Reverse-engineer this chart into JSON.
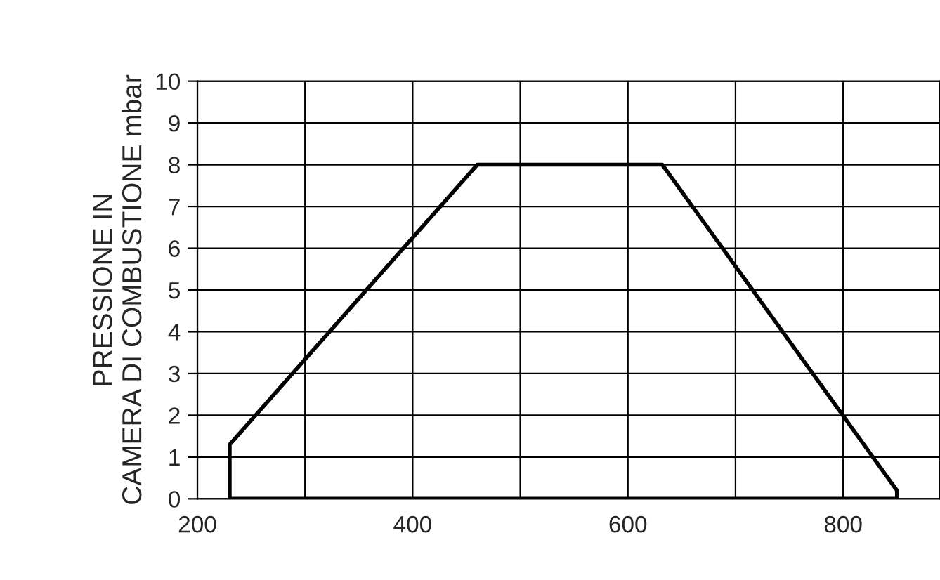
{
  "chart_data": {
    "type": "line",
    "ylabel": "PRESSIONE IN\nCAMERA DI COMBUSTIONE mbar",
    "x": [
      230,
      230,
      460,
      632,
      850,
      850
    ],
    "series": [
      {
        "color": "#000000",
        "values": [
          0,
          1.3,
          8,
          8,
          0.2,
          0
        ]
      },
      {
        "color": "#000000",
        "x": [
          230,
          850
        ],
        "values": [
          0,
          0
        ]
      }
    ],
    "xlim": [
      200,
      890
    ],
    "ylim": [
      0,
      10
    ],
    "xticks": [
      200,
      {
        "value": 300,
        "label": null
      },
      400,
      {
        "value": 500,
        "label": null
      },
      600,
      {
        "value": 700,
        "label": null
      },
      800
    ],
    "yticks": [
      0,
      1,
      2,
      3,
      4,
      5,
      6,
      7,
      8,
      9,
      10
    ],
    "grid": true,
    "marker": "none",
    "line_style": "solid"
  }
}
